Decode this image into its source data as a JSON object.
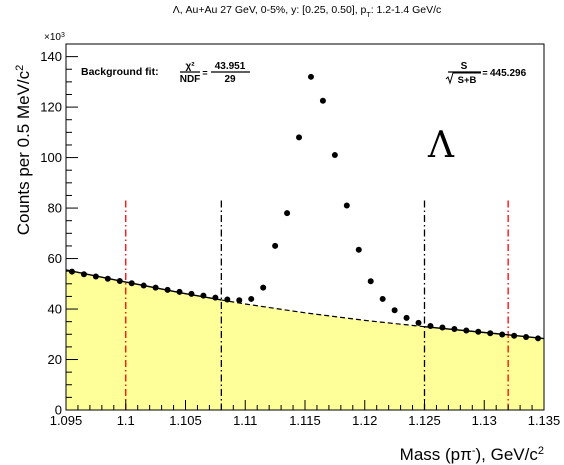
{
  "chart_data": {
    "type": "scatter",
    "title": "Λ, Au+Au 27 GeV, 0-5%, y: [0.25, 0.50], p_T: 1.2-1.4 GeV/c",
    "title_parts": {
      "prefix": "Λ, Au+Au 27 GeV, 0-5%, y: [0.25, 0.50], p",
      "sub": "T",
      "suffix": ": 1.2-1.4 GeV/c"
    },
    "xlabel": "Mass (pπ⁻), GeV/c²",
    "xlabel_parts": {
      "main": "Mass (pπ",
      "sup1": "-",
      "mid": "), GeV/c",
      "sup2": "2"
    },
    "ylabel": "Counts per 0.5 MeV/c²",
    "ylabel_parts": {
      "main": "Counts per 0.5 MeV/c",
      "sup": "2"
    },
    "y_multiplier": "×10³",
    "y_multiplier_parts": {
      "base": "×10",
      "exp": "3"
    },
    "xlim": [
      1.095,
      1.135
    ],
    "ylim": [
      0,
      145
    ],
    "x_ticks": [
      1.095,
      1.1,
      1.105,
      1.11,
      1.115,
      1.12,
      1.125,
      1.13,
      1.135
    ],
    "x_tick_labels": [
      "1.095",
      "1.1",
      "1.105",
      "1.11",
      "1.115",
      "1.12",
      "1.125",
      "1.13",
      "1.135"
    ],
    "y_ticks": [
      0,
      20,
      40,
      60,
      80,
      100,
      120,
      140
    ],
    "y_tick_labels": [
      "0",
      "20",
      "40",
      "60",
      "80",
      "100",
      "120",
      "140"
    ],
    "grid": false,
    "legend": "none",
    "series": [
      {
        "kind": "data-points",
        "x": [
          1.0955,
          1.0965,
          1.0975,
          1.0985,
          1.0995,
          1.1005,
          1.1015,
          1.1025,
          1.1035,
          1.1045,
          1.1055,
          1.1065,
          1.1075,
          1.1085,
          1.1095,
          1.1105,
          1.1115,
          1.1125,
          1.1135,
          1.1145,
          1.1155,
          1.1165,
          1.1175,
          1.1185,
          1.1195,
          1.1205,
          1.1215,
          1.1225,
          1.1235,
          1.1245,
          1.1255,
          1.1265,
          1.1275,
          1.1285,
          1.1295,
          1.1305,
          1.1315,
          1.1325,
          1.1335,
          1.1345
        ],
        "y": [
          54.8,
          53.8,
          52.9,
          52.0,
          51.1,
          50.2,
          49.3,
          48.5,
          47.6,
          46.8,
          46.0,
          45.3,
          44.5,
          43.8,
          43.5,
          44.0,
          48.5,
          65.0,
          78.0,
          108.0,
          132.0,
          122.5,
          101.0,
          81.0,
          63.5,
          51.0,
          44.0,
          39.5,
          36.5,
          34.5,
          33.3,
          32.7,
          32.1,
          31.5,
          31.0,
          30.4,
          29.9,
          29.4,
          28.9,
          28.4
        ]
      },
      {
        "kind": "background-fit",
        "x": [
          1.095,
          1.1,
          1.105,
          1.108,
          1.11,
          1.115,
          1.12,
          1.125,
          1.13,
          1.132,
          1.135
        ],
        "y": [
          55.5,
          50.7,
          46.1,
          43.6,
          42.0,
          38.5,
          35.5,
          33.0,
          30.7,
          29.8,
          28.3
        ]
      }
    ],
    "fit_region": [
      1.095,
      1.135
    ],
    "signal_window_lines": [
      1.108,
      1.125
    ],
    "sideband_lines": [
      1.1,
      1.132
    ],
    "annotations": {
      "background_fit_label": "Background fit:",
      "chi2": "χ²",
      "ndf": "NDF",
      "chi2_value": "43.951",
      "ndf_value": "29",
      "significance_num": "S",
      "significance_den": "S+B",
      "significance_value": "445.296",
      "particle": "Λ"
    },
    "colors": {
      "fill": "#ffff99",
      "markers": "#000000",
      "fit_line": "#000000",
      "signal_lines": "#000000",
      "sideband_lines": "#ff0000"
    }
  }
}
